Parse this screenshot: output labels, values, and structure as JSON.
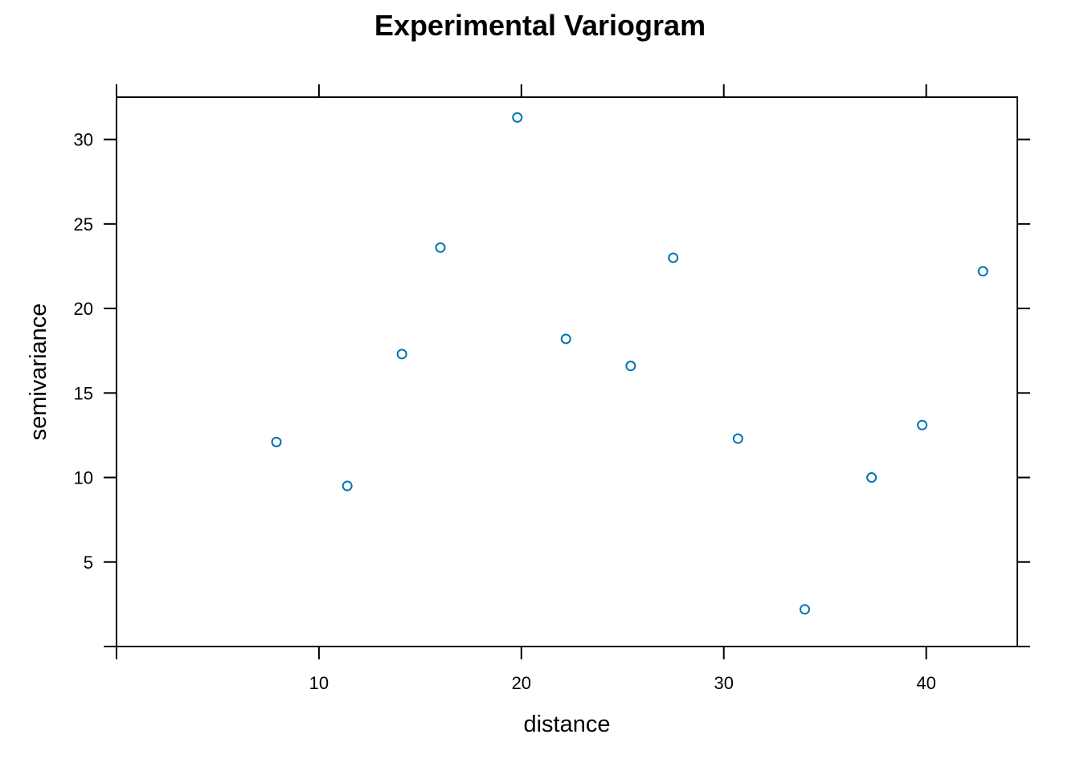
{
  "chart_data": {
    "type": "scatter",
    "title": "Experimental Variogram",
    "xlabel": "distance",
    "ylabel": "semivariance",
    "xlim": [
      0,
      44.5
    ],
    "ylim": [
      0,
      32.5
    ],
    "xticks": [
      10,
      20,
      30,
      40
    ],
    "yticks": [
      5,
      10,
      15,
      20,
      25,
      30
    ],
    "grid": false,
    "marker": "open-circle",
    "point_color": "#0072b2",
    "series": [
      {
        "x": [
          7.9,
          11.4,
          14.1,
          16.0,
          19.8,
          22.2,
          25.4,
          27.5,
          30.7,
          34.0,
          37.3,
          39.8,
          42.8
        ],
        "y": [
          12.1,
          9.5,
          17.3,
          23.6,
          31.3,
          18.2,
          16.6,
          23.0,
          12.3,
          2.2,
          10.0,
          13.1,
          22.2
        ]
      }
    ]
  }
}
